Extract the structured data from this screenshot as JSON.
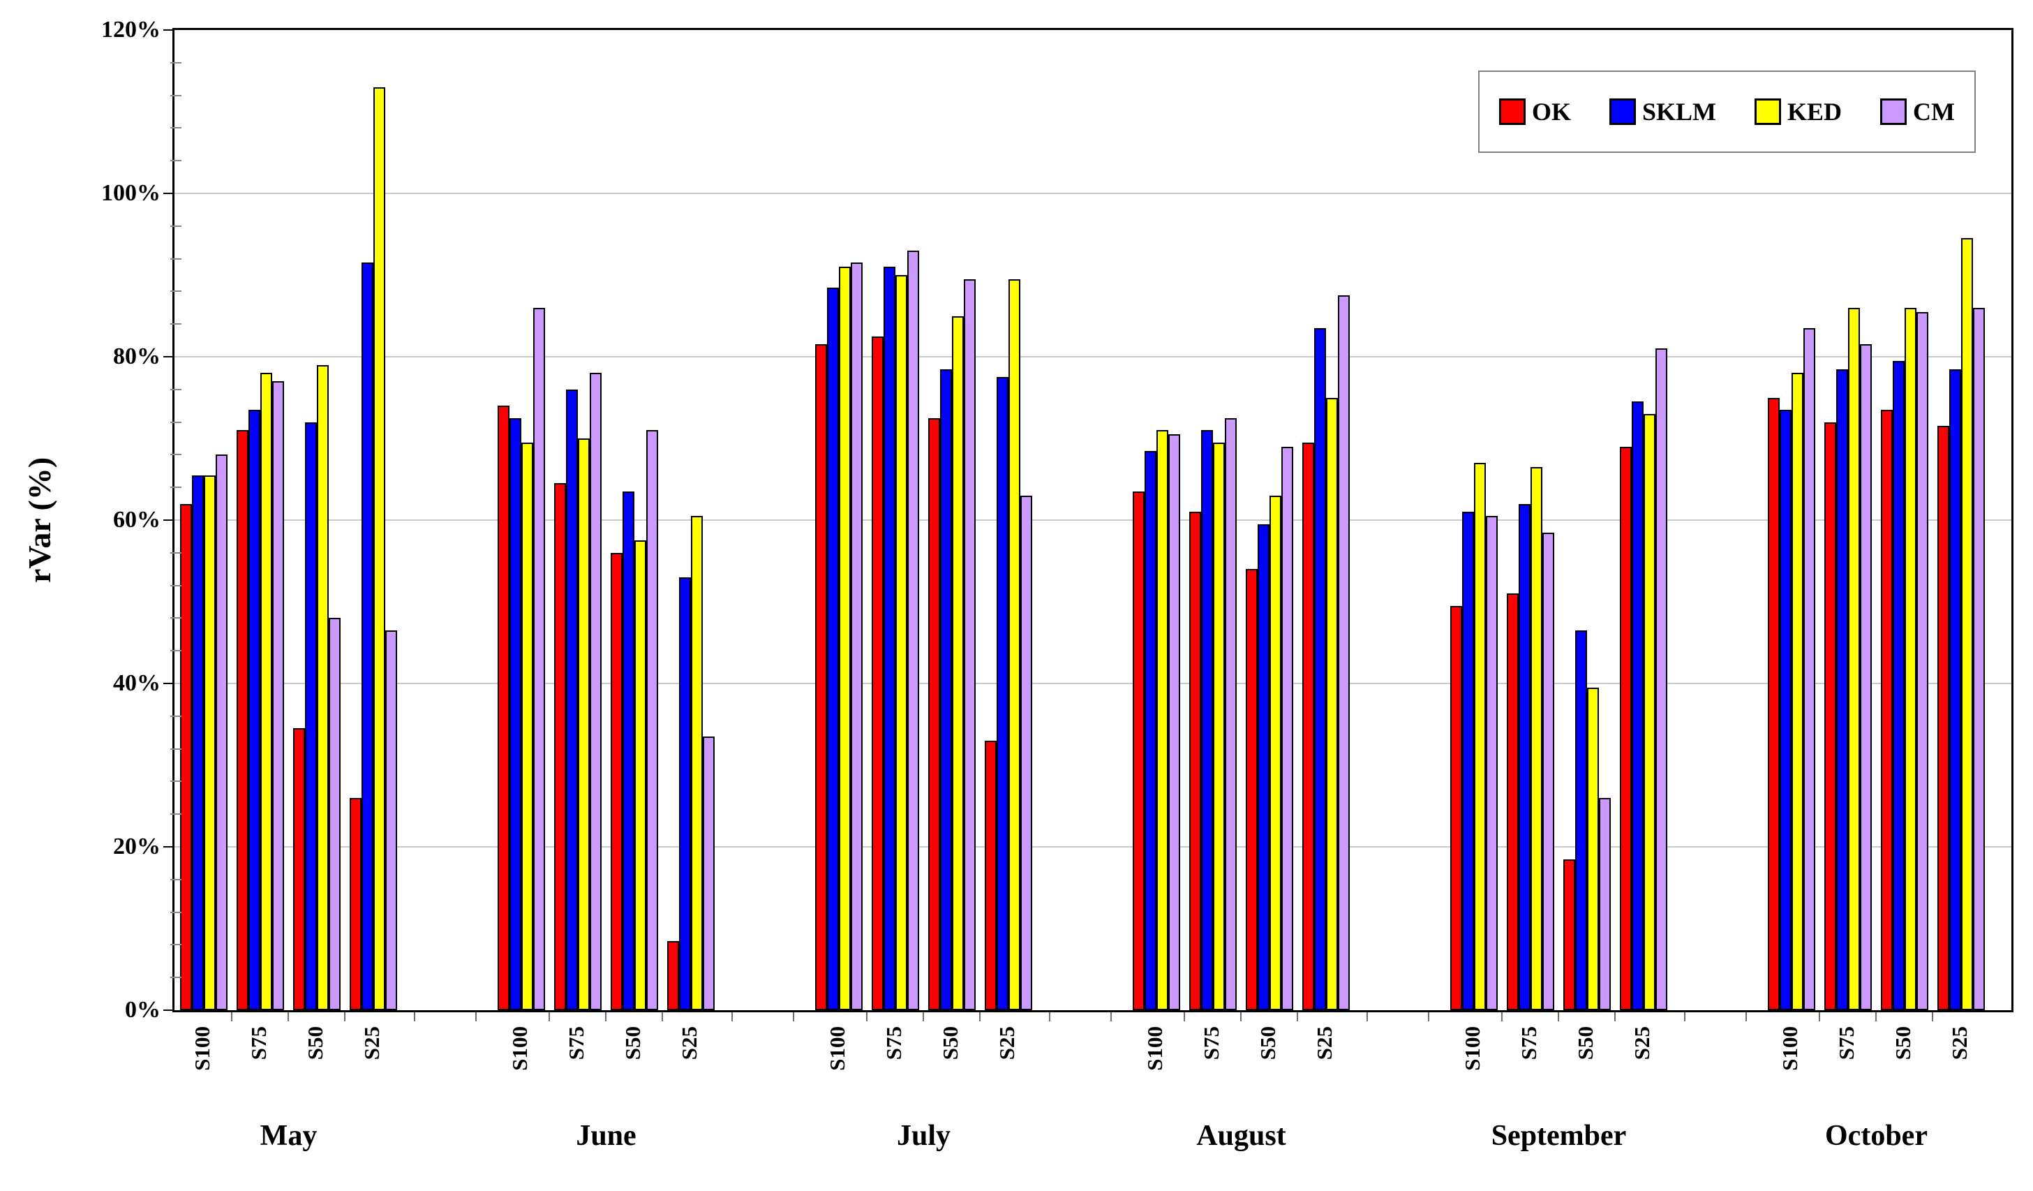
{
  "y_axis": {
    "title": "rVar (%)",
    "tick_labels": [
      "0%",
      "20%",
      "40%",
      "60%",
      "80%",
      "100%",
      "120%"
    ],
    "major_step": 20,
    "minor_step": 4,
    "max": 120
  },
  "legend": {
    "entries": [
      {
        "label": "OK",
        "color": "#FF0000"
      },
      {
        "label": "SKLM",
        "color": "#0000FF"
      },
      {
        "label": "KED",
        "color": "#FFFF00"
      },
      {
        "label": "CM",
        "color": "#CC99FF"
      }
    ]
  },
  "colors": {
    "gridline": "#c9c9c9",
    "bar_outline": "#000000",
    "plot_border": "#000000"
  },
  "chart_data": {
    "type": "bar",
    "title": "",
    "xlabel": "",
    "ylabel": "rVar (%)",
    "ylim": [
      0,
      120
    ],
    "grid": true,
    "legend_position": "top-right inside plot",
    "months": [
      "May",
      "June",
      "July",
      "August",
      "September",
      "October"
    ],
    "levels": [
      "S100",
      "S75",
      "S50",
      "S25"
    ],
    "series": [
      {
        "name": "OK",
        "color": "#FF0000",
        "values": [
          [
            62,
            71,
            34.5,
            26
          ],
          [
            74,
            64.5,
            56,
            8.5
          ],
          [
            81.5,
            82.5,
            72.5,
            33
          ],
          [
            63.5,
            61,
            54,
            69.5
          ],
          [
            49.5,
            51,
            18.5,
            69
          ],
          [
            75,
            72,
            73.5,
            71.5
          ]
        ]
      },
      {
        "name": "SKLM",
        "color": "#0000FF",
        "values": [
          [
            65.5,
            73.5,
            72,
            91.5
          ],
          [
            72.5,
            76,
            63.5,
            53
          ],
          [
            88.5,
            91,
            78.5,
            77.5
          ],
          [
            68.5,
            71,
            59.5,
            83.5
          ],
          [
            61,
            62,
            46.5,
            74.5
          ],
          [
            73.5,
            78.5,
            79.5,
            78.5
          ]
        ]
      },
      {
        "name": "KED",
        "color": "#FFFF00",
        "values": [
          [
            65.5,
            78,
            79,
            113
          ],
          [
            69.5,
            70,
            57.5,
            60.5
          ],
          [
            91,
            90,
            85,
            89.5
          ],
          [
            71,
            69.5,
            63,
            75
          ],
          [
            67,
            66.5,
            39.5,
            73
          ],
          [
            78,
            86,
            86,
            94.5
          ]
        ]
      },
      {
        "name": "CM",
        "color": "#CC99FF",
        "values": [
          [
            68,
            77,
            48,
            46.5
          ],
          [
            86,
            78,
            71,
            33.5
          ],
          [
            91.5,
            93,
            89.5,
            63
          ],
          [
            70.5,
            72.5,
            69,
            87.5
          ],
          [
            60.5,
            58.5,
            26,
            81
          ],
          [
            83.5,
            81.5,
            85.5,
            86
          ]
        ]
      }
    ]
  }
}
